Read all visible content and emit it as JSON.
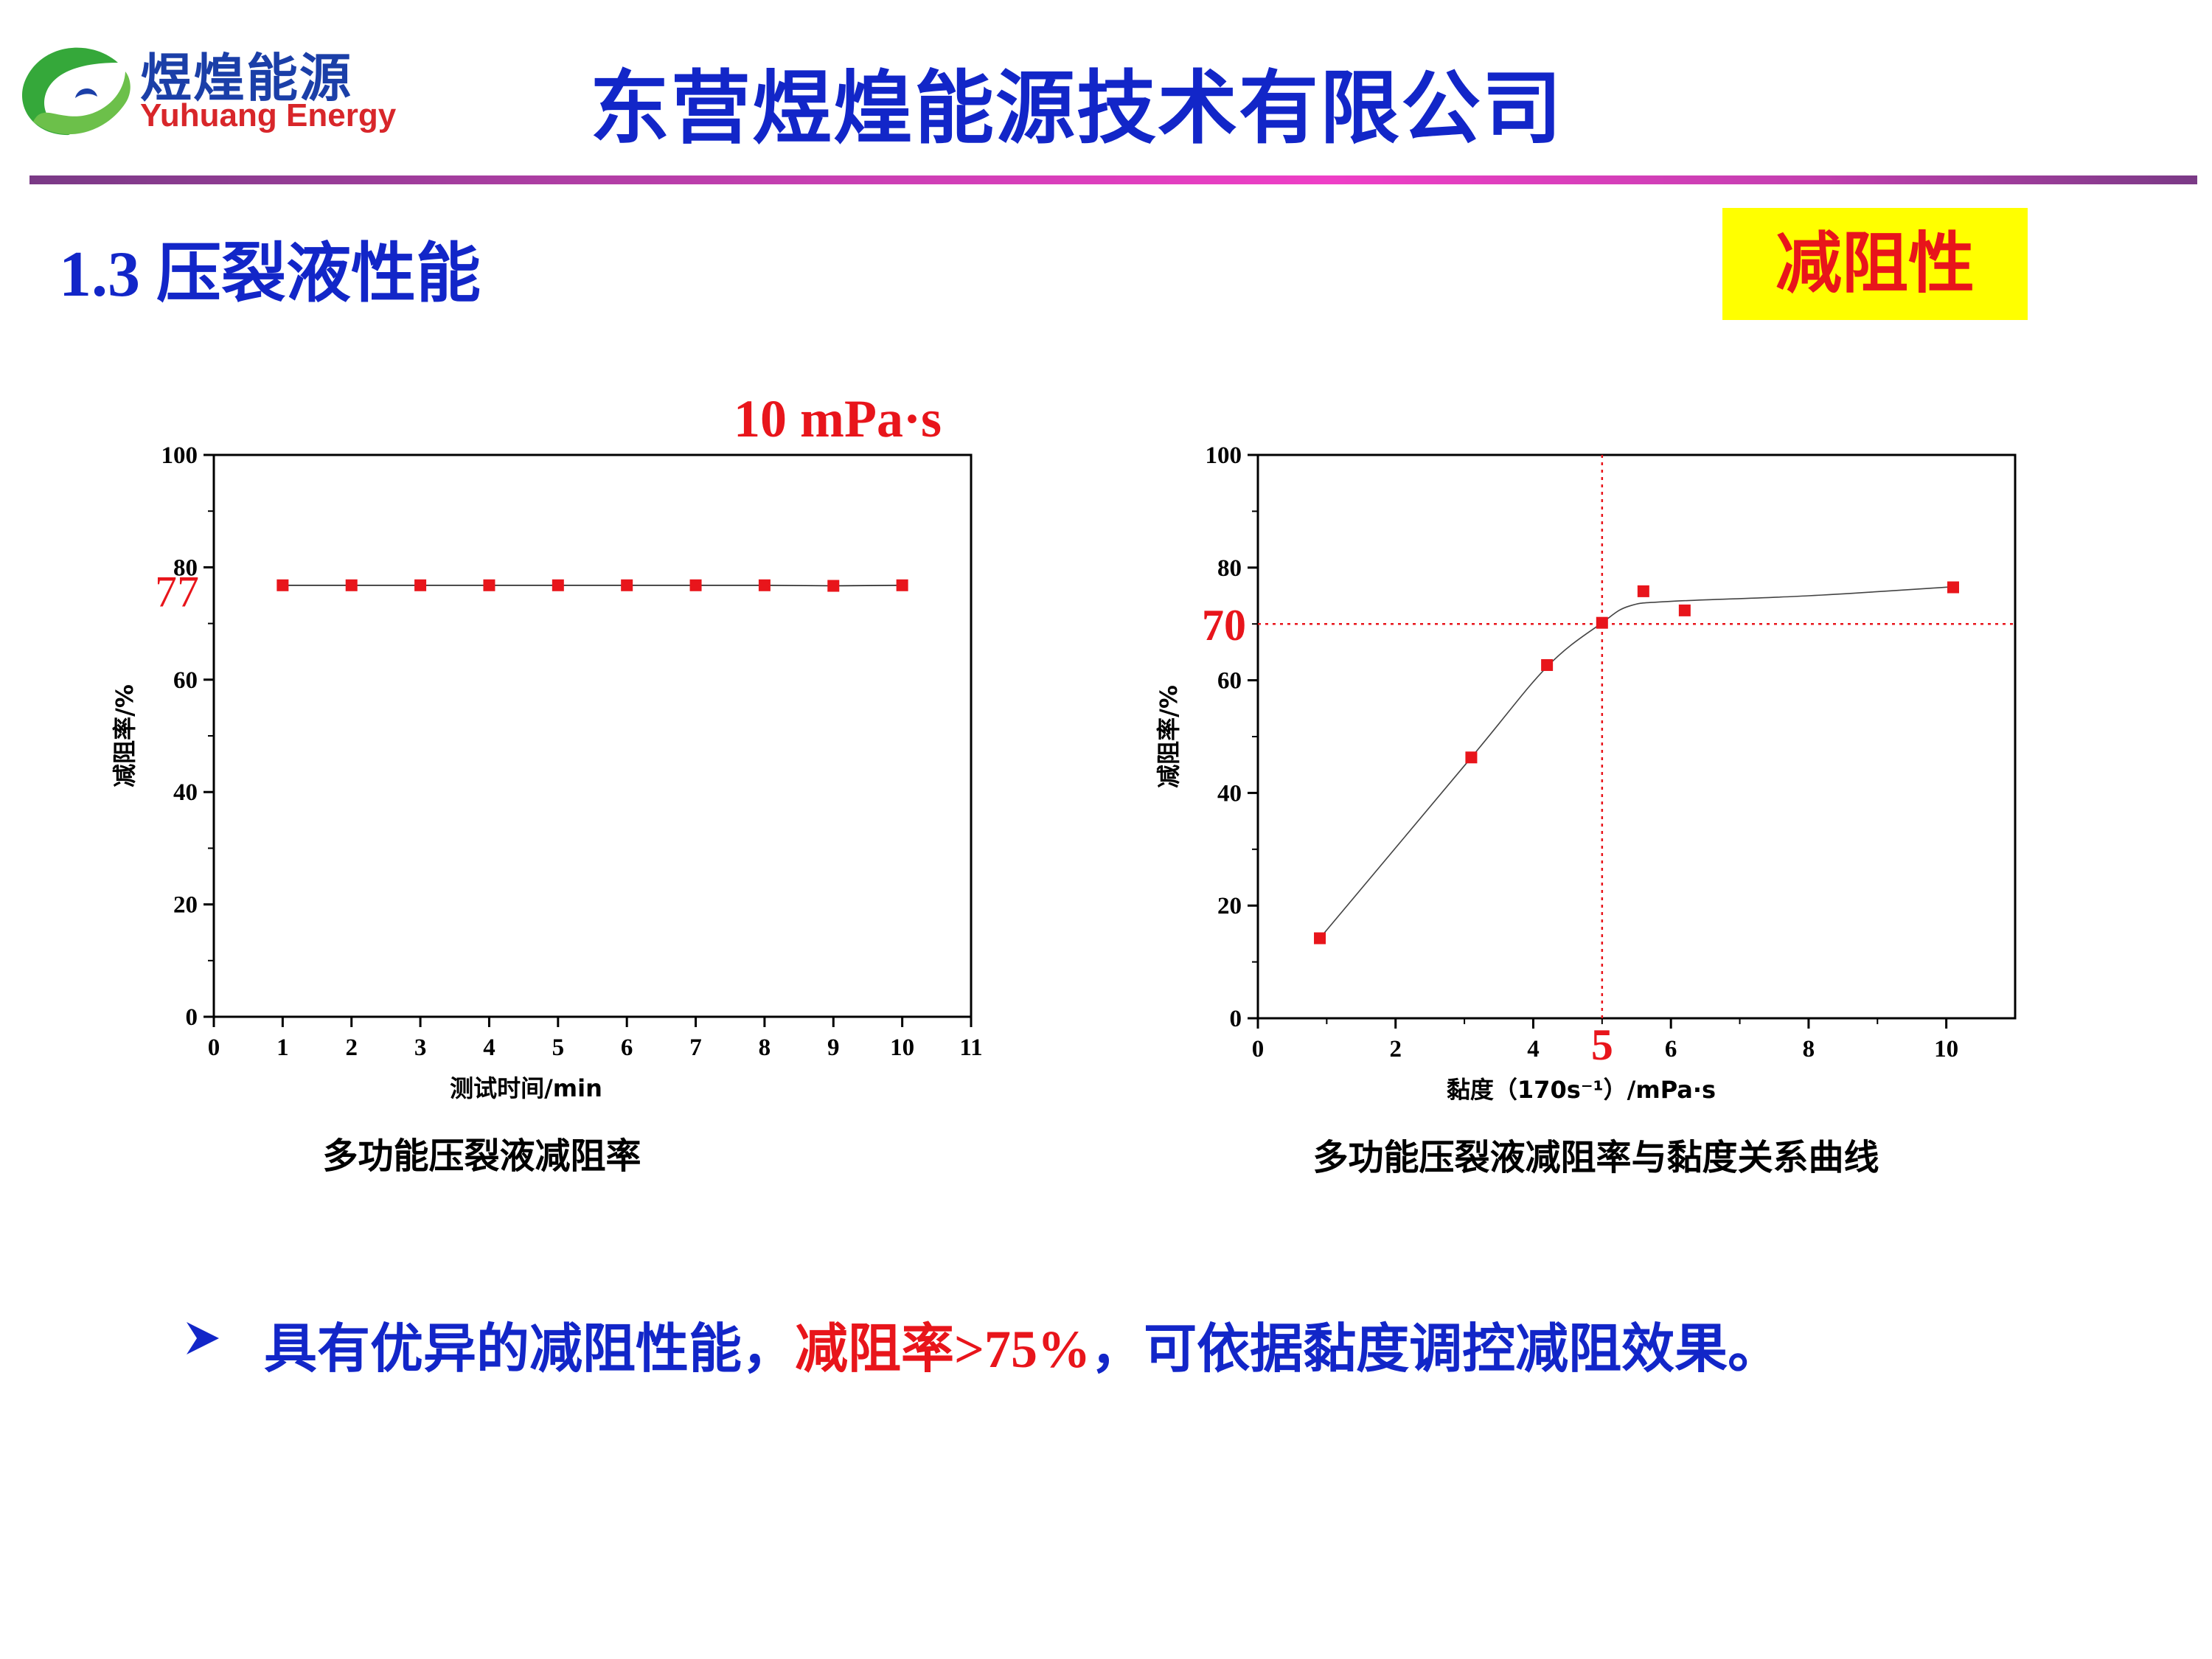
{
  "header": {
    "logo_cn": "煜煌能源",
    "logo_en": "Yuhuang Energy",
    "company": "东营煜煌能源技术有限公司"
  },
  "section": {
    "number": "1.3",
    "title": "压裂液性能",
    "tag": "减阻性"
  },
  "colors": {
    "title_blue": "#1226c8",
    "accent_red": "#e8151b",
    "tag_bg": "#ffff00",
    "logo_green": "#35a83a"
  },
  "chart_data": [
    {
      "type": "line",
      "annotation": "10 mPa·s",
      "value_label": "77",
      "xlabel": "测试时间/min",
      "ylabel": "减阻率/%",
      "caption": "多功能压裂液减阻率",
      "xlim": [
        0,
        11
      ],
      "ylim": [
        0,
        100
      ],
      "xticks": [
        "0",
        "1",
        "2",
        "3",
        "4",
        "5",
        "6",
        "7",
        "8",
        "9",
        "10",
        "11"
      ],
      "yticks": [
        "0",
        "20",
        "40",
        "60",
        "80",
        "100"
      ],
      "x": [
        1,
        2,
        3,
        4,
        5,
        6,
        7,
        8,
        9,
        10
      ],
      "y": [
        76.8,
        76.8,
        76.8,
        76.8,
        76.8,
        76.8,
        76.8,
        76.8,
        76.7,
        76.8
      ]
    },
    {
      "type": "scatter",
      "xlabel": "黏度（170s⁻¹）/mPa·s",
      "ylabel": "减阻率/%",
      "caption": "多功能压裂液减阻率与黏度关系曲线",
      "xlim": [
        0,
        11
      ],
      "ylim": [
        0,
        100
      ],
      "xticks": [
        "0",
        "2",
        "4",
        "6",
        "8",
        "10"
      ],
      "yticks": [
        "0",
        "20",
        "40",
        "60",
        "80",
        "100"
      ],
      "ref_x": 5,
      "ref_y": 70,
      "ref_x_label": "5",
      "ref_y_label": "70",
      "x": [
        0.9,
        3.1,
        4.2,
        5.0,
        5.6,
        6.2,
        10.1
      ],
      "y": [
        14.2,
        46.3,
        62.7,
        70.2,
        75.8,
        72.4,
        76.5
      ],
      "fit_x": [
        0.9,
        3.1,
        4.2,
        5.0,
        5.4,
        6.0,
        8.0,
        10.1
      ],
      "fit_y": [
        14.2,
        46.3,
        62.4,
        70.2,
        73.2,
        74.0,
        75.0,
        76.6
      ]
    }
  ],
  "bullet": {
    "text_a": "具有优异的减阻性能，",
    "text_hl": "减阻率",
    "text_rate": ">75%",
    "text_b": "，可依据黏度调控减阻效果。"
  }
}
